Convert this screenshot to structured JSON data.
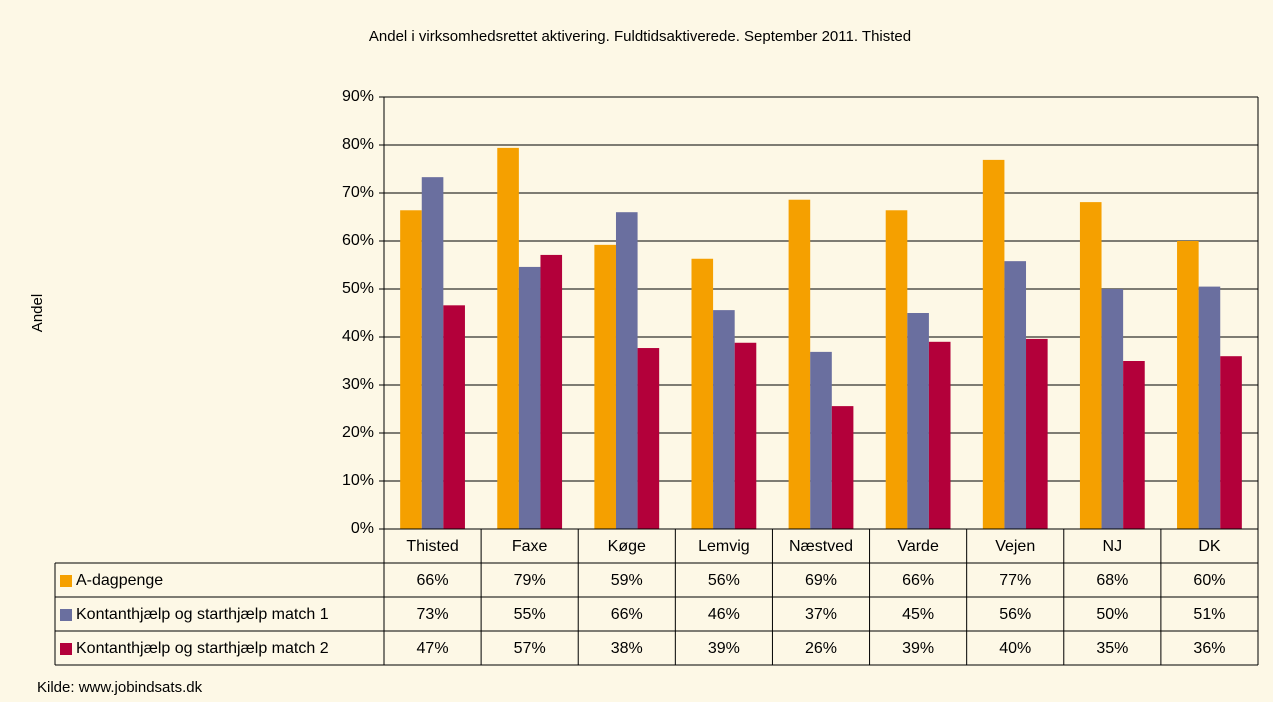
{
  "chart_data": {
    "type": "bar",
    "title": "Andel i virksomhedsrettet aktivering. Fuldtidsaktiverede. September 2011. Thisted",
    "y_label": "Andel",
    "source": "Kilde: www.jobindsats.dk",
    "categories": [
      "Thisted",
      "Faxe",
      "Køge",
      "Lemvig",
      "Næstved",
      "Varde",
      "Vejen",
      "NJ",
      "DK"
    ],
    "series": [
      {
        "name": "A-dagpenge",
        "color": "#f5a000",
        "values": [
          66.4,
          79.4,
          59.2,
          56.3,
          68.6,
          66.4,
          76.9,
          68.1,
          60.0
        ],
        "value_labels": [
          "66%",
          "79%",
          "59%",
          "56%",
          "69%",
          "66%",
          "77%",
          "68%",
          "60%"
        ]
      },
      {
        "name": "Kontanthjælp og starthjælp match 1",
        "color": "#6a6f9f",
        "values": [
          73.3,
          54.6,
          66.0,
          45.6,
          36.9,
          45.0,
          55.8,
          50.0,
          50.5
        ],
        "value_labels": [
          "73%",
          "55%",
          "66%",
          "46%",
          "37%",
          "45%",
          "56%",
          "50%",
          "51%"
        ]
      },
      {
        "name": "Kontanthjælp og starthjælp match 2",
        "color": "#b3003a",
        "values": [
          46.6,
          57.1,
          37.7,
          38.8,
          25.6,
          39.0,
          39.6,
          35.0,
          36.0
        ],
        "value_labels": [
          "47%",
          "57%",
          "38%",
          "39%",
          "26%",
          "39%",
          "40%",
          "35%",
          "36%"
        ]
      }
    ],
    "ylim": [
      0,
      90
    ],
    "yticks": [
      {
        "value": 0,
        "label": "0%"
      },
      {
        "value": 10,
        "label": "10%"
      },
      {
        "value": 20,
        "label": "20%"
      },
      {
        "value": 30,
        "label": "30%"
      },
      {
        "value": 40,
        "label": "40%"
      },
      {
        "value": 50,
        "label": "50%"
      },
      {
        "value": 60,
        "label": "60%"
      },
      {
        "value": 70,
        "label": "70%"
      },
      {
        "value": 80,
        "label": "80%"
      },
      {
        "value": 90,
        "label": "90%"
      }
    ],
    "grid": true
  }
}
